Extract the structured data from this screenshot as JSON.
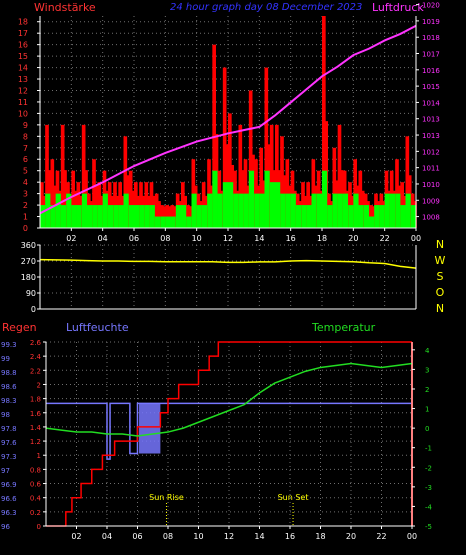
{
  "header": {
    "left_label": "Windstärke",
    "title": "24 hour graph day 08 December 2023",
    "right_label": "Luftdruck"
  },
  "colors": {
    "background": "#000000",
    "grid": "#6f6f6f",
    "axis": "#ffffff",
    "wind_gust": "#ff0000",
    "wind_avg": "#00ff00",
    "pressure": "#ff33ff",
    "direction": "#ffff00",
    "rain": "#ff0000",
    "humidity": "#7777ff",
    "temperature": "#22dd22",
    "left_ticks": "#ff3333",
    "right_ticks": "#ff33ff",
    "title": "#3333ff",
    "compass": "#ffff00",
    "sun": "#ffff00"
  },
  "chart_data": [
    {
      "type": "bar",
      "name": "wind-pressure",
      "left_axis": {
        "label": "Windstärke",
        "ticks": [
          "0",
          "1",
          "2",
          "3",
          "4",
          "5",
          "6",
          "7",
          "8",
          "9",
          "10",
          "11",
          "12",
          "13",
          "14",
          "15",
          "16",
          "17",
          "18"
        ],
        "range": [
          0,
          18.5
        ]
      },
      "right_axis": {
        "label": "Luftdruck",
        "ticks": [
          "1008",
          "1009",
          "1010",
          "1011",
          "1012",
          "1013",
          "1013",
          "1014",
          "1015",
          "1016",
          "1017",
          "1018",
          "1019",
          "1020"
        ],
        "range": [
          1007.3,
          1020.3
        ]
      },
      "x_ticks": [
        "02",
        "04",
        "06",
        "08",
        "10",
        "12",
        "14",
        "16",
        "18",
        "20",
        "22",
        "00"
      ],
      "x_range": [
        0,
        24
      ],
      "series": [
        {
          "kind": "gust-bars",
          "x": [
            0,
            0.33,
            0.67,
            1,
            1.33,
            1.67,
            2,
            2.33,
            2.67,
            3,
            3.33,
            3.67,
            4,
            4.33,
            4.67,
            5,
            5.33,
            5.67,
            6,
            6.33,
            6.67,
            7,
            7.33,
            7.67,
            8,
            8.33,
            8.67,
            9,
            9.33,
            9.67,
            10,
            10.33,
            10.67,
            11,
            11.33,
            11.67,
            12,
            12.33,
            12.67,
            13,
            13.33,
            13.67,
            14,
            14.33,
            14.67,
            15,
            15.33,
            15.67,
            16,
            16.33,
            16.67,
            17,
            17.33,
            17.67,
            18,
            18.33,
            18.67,
            19,
            19.33,
            19.67,
            20,
            20.33,
            20.67,
            21,
            21.33,
            21.67,
            22,
            22.33,
            22.67,
            23,
            23.33,
            23.67
          ],
          "values": [
            4,
            9,
            6,
            5,
            9,
            4,
            5,
            4,
            9,
            3,
            6,
            4,
            5,
            4,
            4,
            4,
            8,
            5,
            4,
            4,
            4,
            4,
            3,
            2,
            2,
            2,
            3,
            4,
            2,
            6,
            3,
            4,
            6,
            16,
            5,
            14,
            10,
            5,
            9,
            6,
            12,
            6,
            7,
            14,
            9,
            9,
            8,
            6,
            5,
            3,
            4,
            4,
            6,
            5,
            18.5,
            3,
            7,
            9,
            5,
            4,
            6,
            5,
            3,
            2,
            3,
            3,
            5,
            5,
            6,
            4,
            8,
            3
          ]
        },
        {
          "kind": "avg-bars",
          "x": [
            0,
            0.33,
            0.67,
            1,
            1.33,
            1.67,
            2,
            2.33,
            2.67,
            3,
            3.33,
            3.67,
            4,
            4.33,
            4.67,
            5,
            5.33,
            5.67,
            6,
            6.33,
            6.67,
            7,
            7.33,
            7.67,
            8,
            8.33,
            8.67,
            9,
            9.33,
            9.67,
            10,
            10.33,
            10.67,
            11,
            11.33,
            11.67,
            12,
            12.33,
            12.67,
            13,
            13.33,
            13.67,
            14,
            14.33,
            14.67,
            15,
            15.33,
            15.67,
            16,
            16.33,
            16.67,
            17,
            17.33,
            17.67,
            18,
            18.33,
            18.67,
            19,
            19.33,
            19.67,
            20,
            20.33,
            20.67,
            21,
            21.33,
            21.67,
            22,
            22.33,
            22.67,
            23,
            23.33,
            23.67
          ],
          "values": [
            2,
            3,
            2,
            3,
            2,
            3,
            2,
            2,
            3,
            2,
            2,
            2,
            3,
            2,
            2,
            2,
            3,
            2,
            2,
            2,
            2,
            2,
            1,
            1,
            1,
            1,
            2,
            2,
            1,
            3,
            2,
            2,
            3,
            5,
            3,
            4,
            4,
            3,
            3,
            3,
            5,
            3,
            3,
            5,
            4,
            4,
            3,
            3,
            3,
            2,
            2,
            2,
            3,
            3,
            5,
            2,
            3,
            3,
            3,
            2,
            3,
            2,
            2,
            1,
            2,
            2,
            3,
            3,
            3,
            2,
            3,
            2
          ]
        },
        {
          "kind": "pressure-line",
          "x": [
            0,
            2,
            4,
            6,
            8,
            10,
            12,
            13,
            14,
            15,
            16,
            17,
            18,
            19,
            20,
            21,
            22,
            23,
            24
          ],
          "values": [
            1008.2,
            1009.2,
            1010.1,
            1011.1,
            1011.9,
            1012.6,
            1013.1,
            1013.3,
            1013.5,
            1014.2,
            1015.0,
            1015.8,
            1016.6,
            1017.2,
            1017.9,
            1018.3,
            1018.8,
            1019.2,
            1019.7
          ]
        }
      ]
    },
    {
      "type": "line",
      "name": "wind-direction",
      "y_ticks": [
        "0",
        "90",
        "180",
        "270",
        "360"
      ],
      "y_range": [
        0,
        360
      ],
      "compass": [
        "N",
        "W",
        "S",
        "O",
        "N"
      ],
      "x": [
        0,
        1,
        2,
        3,
        4,
        5,
        6,
        7,
        8,
        9,
        10,
        11,
        12,
        13,
        14,
        15,
        16,
        17,
        18,
        19,
        20,
        21,
        22,
        23,
        24
      ],
      "values": [
        278,
        276,
        275,
        272,
        270,
        270,
        268,
        268,
        266,
        266,
        266,
        266,
        262,
        262,
        265,
        265,
        270,
        272,
        270,
        268,
        266,
        260,
        256,
        240,
        230
      ]
    },
    {
      "type": "line",
      "name": "rain-humidity-temperature",
      "labels": {
        "rain": "Regen",
        "humidity": "Luftfeuchte",
        "temperature": "Temperatur"
      },
      "rain_axis": {
        "ticks": [
          "0",
          "0.2",
          "0.4",
          "0.6",
          "0.8",
          "1",
          "1.2",
          "1.4",
          "1.6",
          "1.8",
          "2",
          "2.2",
          "2.4",
          "2.6"
        ],
        "range": [
          0,
          2.6
        ]
      },
      "humidity_axis": {
        "ticks": [
          "96",
          "96.3",
          "96.6",
          "96.9",
          "97",
          "97.3",
          "97.6",
          "97.8",
          "98",
          "98.3",
          "98.6",
          "98.8",
          "99",
          "99.3"
        ],
        "range": [
          96,
          99.3
        ]
      },
      "temperature_axis": {
        "ticks": [
          "-5",
          "-4",
          "-3",
          "-2",
          "-1",
          "0",
          "1",
          "2",
          "3",
          "4"
        ],
        "range": [
          -5,
          4.4
        ]
      },
      "x_ticks": [
        "02",
        "04",
        "06",
        "08",
        "10",
        "12",
        "14",
        "16",
        "18",
        "20",
        "22",
        "00"
      ],
      "x_range": [
        0,
        24
      ],
      "rain": {
        "x": [
          0,
          1.3,
          1.7,
          2.3,
          3,
          3.7,
          4.5,
          6,
          7.5,
          8,
          8.7,
          10,
          10.7,
          11.3,
          11.6,
          12,
          24
        ],
        "values": [
          0,
          0.2,
          0.4,
          0.6,
          0.8,
          1,
          1.2,
          1.4,
          1.6,
          1.8,
          2,
          2.2,
          2.4,
          2.6,
          2.6,
          2.6,
          2.6
        ]
      },
      "humidity": {
        "x": [
          0,
          4,
          4,
          4.2,
          4.2,
          5.5,
          5.5,
          6,
          6,
          7.5,
          7.5,
          24
        ],
        "values": [
          98.2,
          98.2,
          97.2,
          97.2,
          98.2,
          98.2,
          97.3,
          97.3,
          98.2,
          98.2,
          98.2,
          98.2
        ]
      },
      "humidity_band": {
        "x": [
          6.1,
          7.5
        ],
        "range": [
          97.3,
          98.2
        ]
      },
      "temperature": {
        "x": [
          0,
          1,
          2,
          3,
          4,
          5,
          6,
          7,
          8,
          9,
          10,
          11,
          12,
          13,
          14,
          15,
          16,
          17,
          18,
          19,
          20,
          21,
          22,
          23,
          24
        ],
        "values": [
          0,
          -0.1,
          -0.2,
          -0.2,
          -0.3,
          -0.3,
          -0.4,
          -0.3,
          -0.2,
          0,
          0.3,
          0.6,
          0.9,
          1.2,
          1.8,
          2.3,
          2.6,
          2.9,
          3.1,
          3.2,
          3.3,
          3.2,
          3.1,
          3.2,
          3.3
        ]
      },
      "annotations": [
        {
          "label": "Sun Rise",
          "x": 7.9
        },
        {
          "label": "Sun Set",
          "x": 16.2
        }
      ]
    }
  ]
}
